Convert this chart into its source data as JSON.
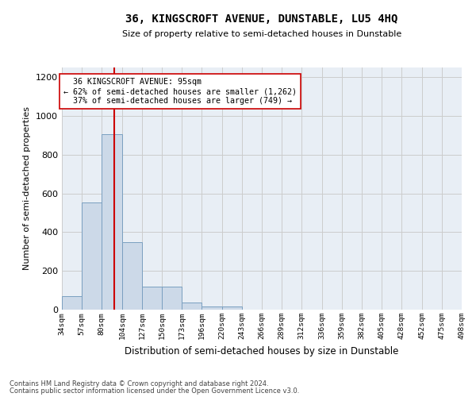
{
  "title": "36, KINGSCROFT AVENUE, DUNSTABLE, LU5 4HQ",
  "subtitle": "Size of property relative to semi-detached houses in Dunstable",
  "xlabel": "Distribution of semi-detached houses by size in Dunstable",
  "ylabel": "Number of semi-detached properties",
  "property_label": "36 KINGSCROFT AVENUE: 95sqm",
  "smaller_pct": "62% of semi-detached houses are smaller (1,262)",
  "larger_pct": "37% of semi-detached houses are larger (749)",
  "property_size": 95,
  "categories": [
    "34sqm",
    "57sqm",
    "80sqm",
    "104sqm",
    "127sqm",
    "150sqm",
    "173sqm",
    "196sqm",
    "220sqm",
    "243sqm",
    "266sqm",
    "289sqm",
    "312sqm",
    "336sqm",
    "359sqm",
    "382sqm",
    "405sqm",
    "428sqm",
    "452sqm",
    "475sqm",
    "498sqm"
  ],
  "bin_edges": [
    34,
    57,
    80,
    104,
    127,
    150,
    173,
    196,
    220,
    243,
    266,
    289,
    312,
    336,
    359,
    382,
    405,
    428,
    452,
    475,
    498
  ],
  "bar_heights": [
    70,
    555,
    905,
    350,
    120,
    120,
    35,
    15,
    15,
    0,
    0,
    0,
    0,
    0,
    0,
    0,
    0,
    0,
    0,
    0,
    0
  ],
  "bar_color": "#ccd9e8",
  "bar_edge_color": "#7a9fc0",
  "red_line_color": "#cc0000",
  "grid_color": "#cccccc",
  "ax_bg_color": "#e8eef5",
  "background_color": "#ffffff",
  "annotation_box_color": "#ffffff",
  "annotation_box_edge": "#cc0000",
  "ylim": [
    0,
    1250
  ],
  "yticks": [
    0,
    200,
    400,
    600,
    800,
    1000,
    1200
  ],
  "footnote1": "Contains HM Land Registry data © Crown copyright and database right 2024.",
  "footnote2": "Contains public sector information licensed under the Open Government Licence v3.0."
}
